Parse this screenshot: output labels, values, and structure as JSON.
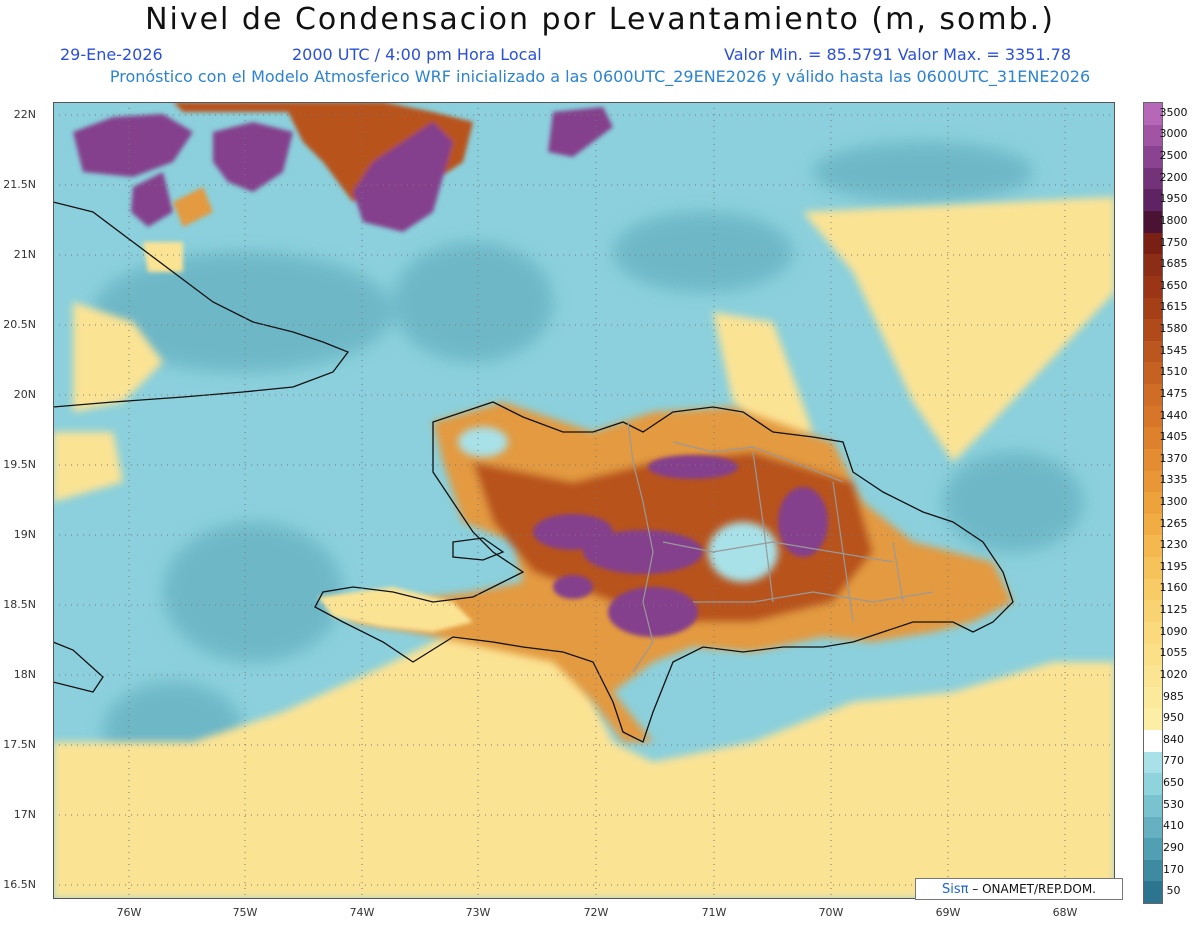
{
  "title": "Nivel de Condensacion por Levantamiento (m, somb.)",
  "date": "29-Ene-2026",
  "time": "2000 UTC / 4:00 pm Hora Local",
  "minmax": "Valor Min. = 85.5791   Valor Max. = 3351.78",
  "model": "Pronóstico con el Modelo Atmosferico WRF inicializado a las 0600UTC_29ENE2026 y válido hasta las  0600UTC_31ENE2026",
  "credit": {
    "brand": "Sisπ",
    "text": "– ONAMET/REP.DOM."
  },
  "lat_labels": [
    "22N",
    "21.5N",
    "21N",
    "20.5N",
    "20N",
    "19.5N",
    "19N",
    "18.5N",
    "18N",
    "17.5N",
    "17N",
    "16.5N"
  ],
  "lon_labels": [
    "76W",
    "75W",
    "74W",
    "73W",
    "72W",
    "71W",
    "70W",
    "69W",
    "68W"
  ],
  "legend": [
    {
      "v": "3500",
      "c": "#b667b7"
    },
    {
      "v": "3000",
      "c": "#a054a3"
    },
    {
      "v": "2500",
      "c": "#8a4390"
    },
    {
      "v": "2200",
      "c": "#743378"
    },
    {
      "v": "1950",
      "c": "#5e2362"
    },
    {
      "v": "1800",
      "c": "#4a1233"
    },
    {
      "v": "1750",
      "c": "#7a1f14"
    },
    {
      "v": "1685",
      "c": "#8c2d15"
    },
    {
      "v": "1650",
      "c": "#9a3616"
    },
    {
      "v": "1615",
      "c": "#a43f18"
    },
    {
      "v": "1580",
      "c": "#b04a1b"
    },
    {
      "v": "1545",
      "c": "#bb561e"
    },
    {
      "v": "1510",
      "c": "#c56222"
    },
    {
      "v": "1475",
      "c": "#cf6c25"
    },
    {
      "v": "1440",
      "c": "#d77629"
    },
    {
      "v": "1405",
      "c": "#de812d"
    },
    {
      "v": "1370",
      "c": "#e48c31"
    },
    {
      "v": "1335",
      "c": "#e99736"
    },
    {
      "v": "1300",
      "c": "#eda23c"
    },
    {
      "v": "1265",
      "c": "#f1ad44"
    },
    {
      "v": "1230",
      "c": "#f4b84e"
    },
    {
      "v": "1195",
      "c": "#f6c25a"
    },
    {
      "v": "1160",
      "c": "#f8cb66"
    },
    {
      "v": "1125",
      "c": "#f9d372"
    },
    {
      "v": "1090",
      "c": "#fada7d"
    },
    {
      "v": "1055",
      "c": "#fbe088"
    },
    {
      "v": "1020",
      "c": "#fce592"
    },
    {
      "v": "985",
      "c": "#fcea9c"
    },
    {
      "v": "950",
      "c": "#fdeea6"
    },
    {
      "v": "840",
      "c": "#ffffff"
    },
    {
      "v": "770",
      "c": "#a8e1e8"
    },
    {
      "v": "650",
      "c": "#8fd3dd"
    },
    {
      "v": "530",
      "c": "#79c3d0"
    },
    {
      "v": "410",
      "c": "#65b1c1"
    },
    {
      "v": "290",
      "c": "#519fb2"
    },
    {
      "v": "170",
      "c": "#3e8ba1"
    },
    {
      "v": "50",
      "c": "#2b7590"
    }
  ],
  "colors": {
    "base_sea": "#8bd0dc",
    "deep": "#5aa6b8",
    "yellow": "#fbe394",
    "orange": "#e39a3f",
    "brown": "#b8521d",
    "purple": "#843f8c",
    "dark_purple": "#5c2462"
  },
  "icons": {
    "credit_logo": "pi-symbol"
  }
}
